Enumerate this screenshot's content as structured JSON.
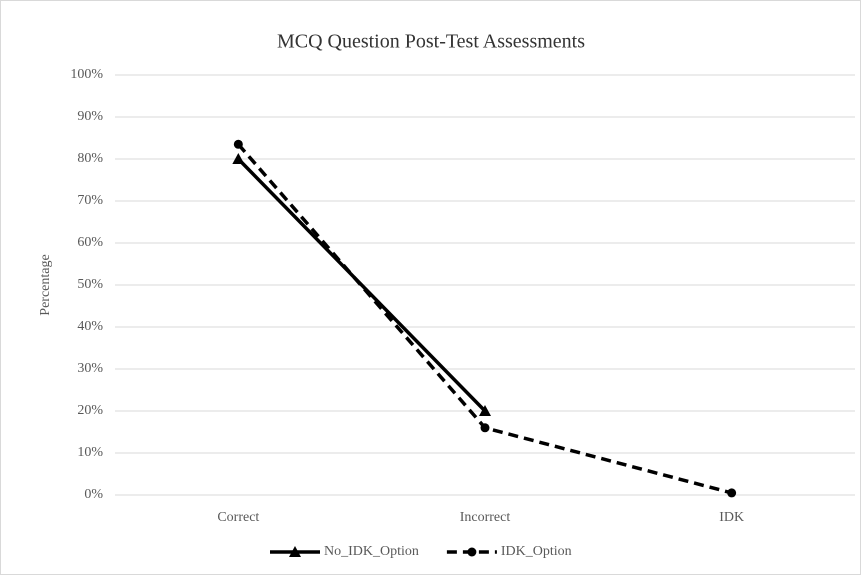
{
  "chart_data": {
    "type": "line",
    "title": "MCQ Question Post-Test Assessments",
    "y_label": "Percentage",
    "categories": [
      "Correct",
      "Incorrect",
      "IDK"
    ],
    "series": [
      {
        "name": "No_IDK_Option",
        "color": "#000000",
        "dash": "solid",
        "marker": "triangle",
        "values": [
          80,
          20,
          null
        ]
      },
      {
        "name": "IDK_Option",
        "color": "#000000",
        "dash": "dashed",
        "marker": "circle",
        "values": [
          83.5,
          16,
          0.5
        ]
      }
    ],
    "ylim": [
      0,
      100
    ],
    "yticks": [
      {
        "value": 0,
        "label": "0%"
      },
      {
        "value": 10,
        "label": "10%"
      },
      {
        "value": 20,
        "label": "20%"
      },
      {
        "value": 30,
        "label": "30%"
      },
      {
        "value": 40,
        "label": "40%"
      },
      {
        "value": 50,
        "label": "50%"
      },
      {
        "value": 60,
        "label": "60%"
      },
      {
        "value": 70,
        "label": "70%"
      },
      {
        "value": 80,
        "label": "80%"
      },
      {
        "value": 90,
        "label": "90%"
      },
      {
        "value": 100,
        "label": "100%"
      }
    ],
    "grid": true,
    "legend": "bottom"
  }
}
